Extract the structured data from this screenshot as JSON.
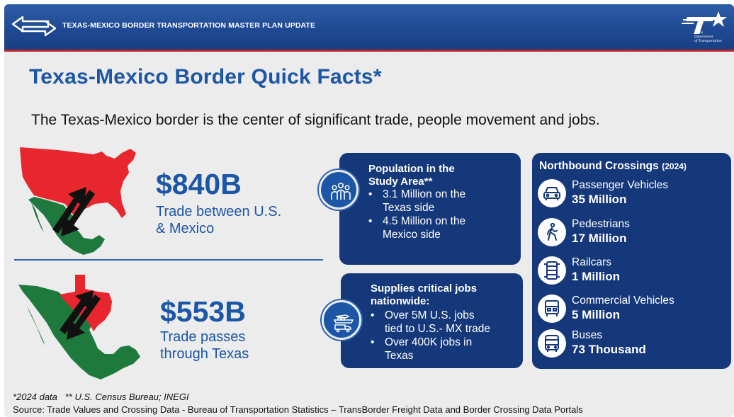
{
  "header": {
    "title": "TEXAS-MEXICO BORDER TRANSPORTATION MASTER PLAN UPDATE",
    "logo_text": [
      "Texas",
      "Department",
      "of Transportation"
    ],
    "colors": {
      "bar": "#1f4a93",
      "accent_line": "#c0272d"
    }
  },
  "page_title": "Texas-Mexico Border Quick Facts*",
  "subtitle": "The Texas-Mexico border is the center of significant trade, people movement and jobs.",
  "trade_us_mexico": {
    "value": "$840B",
    "label_line1": "Trade between U.S.",
    "label_line2": "& Mexico",
    "map_icon": "us-mexico-map-icon"
  },
  "trade_texas": {
    "value": "$553B",
    "label_line1": "Trade passes",
    "label_line2": "through Texas",
    "map_icon": "texas-mexico-map-icon"
  },
  "population_card": {
    "heading_line1": "Population in the",
    "heading_line2": "Study Area**",
    "bullets": [
      [
        "3.1 Million on the",
        "Texas side"
      ],
      [
        "4.5 Million on the",
        "Mexico side"
      ]
    ],
    "icon": "people-group-icon"
  },
  "jobs_card": {
    "heading_line1": "Supplies critical jobs",
    "heading_line2": "nationwide:",
    "bullets": [
      [
        "Over 5M U.S. jobs",
        "tied to U.S.- MX trade"
      ],
      [
        "Over 400K jobs in",
        "Texas"
      ]
    ],
    "icon": "freight-transport-icon"
  },
  "crossings": {
    "heading": "Northbound Crossings",
    "year": "(2024)",
    "items": [
      {
        "label": "Passenger Vehicles",
        "value": "35 Million",
        "icon": "car-icon"
      },
      {
        "label": "Pedestrians",
        "value": "17 Million",
        "icon": "pedestrian-icon"
      },
      {
        "label": "Railcars",
        "value": "1 Million",
        "icon": "railcar-icon"
      },
      {
        "label": "Commercial Vehicles",
        "value": "5 Million",
        "icon": "truck-icon"
      },
      {
        "label": "Buses",
        "value": "73 Thousand",
        "icon": "bus-icon"
      }
    ]
  },
  "footnote": "*2024 data   ** U.S. Census Bureau; INEGI",
  "source": "Source: Trade Values and Crossing Data - Bureau of Transportation Statistics – TransBorder Freight Data and Border Crossing Data Portals",
  "colors": {
    "title_blue": "#1c56a6",
    "card_navy": "#15387a",
    "us_red": "#e8262d",
    "mexico_green": "#1e7a3c",
    "background": "#ececec"
  }
}
